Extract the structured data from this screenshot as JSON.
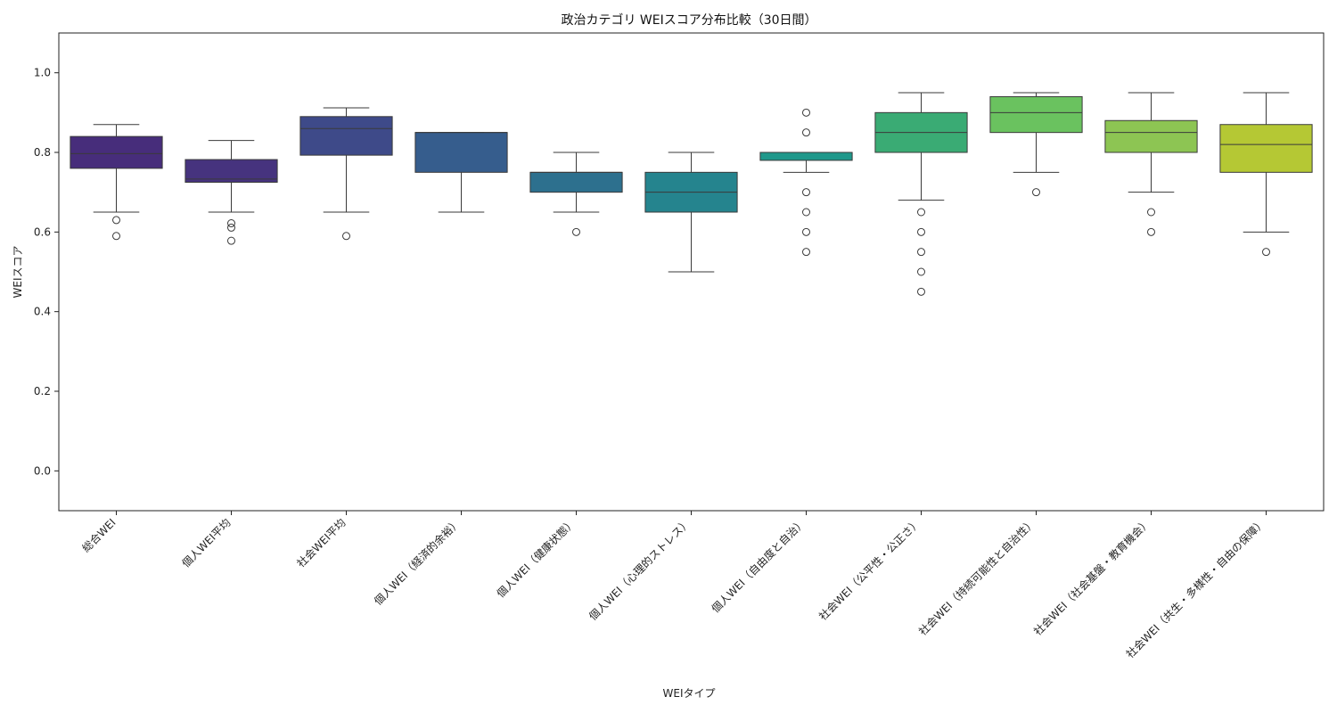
{
  "chart_data": {
    "type": "box",
    "title": "政治カテゴリ WEIスコア分布比較（30日間）",
    "xlabel": "WEIタイプ",
    "ylabel": "WEIスコア",
    "ylim": [
      -0.1,
      1.1
    ],
    "yticks": [
      0.0,
      0.2,
      0.4,
      0.6,
      0.8,
      1.0
    ],
    "ytick_labels": [
      "0.0",
      "0.2",
      "0.4",
      "0.6",
      "0.8",
      "1.0"
    ],
    "grid": false,
    "series": [
      {
        "name": "総合WEI",
        "whisker_low": 0.65,
        "q1": 0.76,
        "median": 0.797,
        "q3": 0.84,
        "whisker_high": 0.87,
        "outliers": [
          0.63,
          0.59
        ],
        "color": "#472d7b"
      },
      {
        "name": "個人WEI平均",
        "whisker_low": 0.65,
        "q1": 0.725,
        "median": 0.733,
        "q3": 0.782,
        "whisker_high": 0.83,
        "outliers": [
          0.622,
          0.611,
          0.578
        ],
        "color": "#46337e"
      },
      {
        "name": "社会WEI平均",
        "whisker_low": 0.65,
        "q1": 0.793,
        "median": 0.86,
        "q3": 0.89,
        "whisker_high": 0.912,
        "outliers": [
          0.59
        ],
        "color": "#3e4a89"
      },
      {
        "name": "個人WEI（経済的余裕）",
        "whisker_low": 0.65,
        "q1": 0.75,
        "median": 0.85,
        "q3": 0.85,
        "whisker_high": 0.85,
        "outliers": [],
        "color": "#365d8d"
      },
      {
        "name": "個人WEI（健康状態）",
        "whisker_low": 0.65,
        "q1": 0.7,
        "median": 0.75,
        "q3": 0.75,
        "whisker_high": 0.8,
        "outliers": [
          0.6
        ],
        "color": "#2d708e"
      },
      {
        "name": "個人WEI（心理的ストレス）",
        "whisker_low": 0.5,
        "q1": 0.65,
        "median": 0.7,
        "q3": 0.75,
        "whisker_high": 0.8,
        "outliers": [],
        "color": "#25848e"
      },
      {
        "name": "個人WEI（自由度と自治）",
        "whisker_low": 0.75,
        "q1": 0.78,
        "median": 0.8,
        "q3": 0.8,
        "whisker_high": 0.8,
        "outliers": [
          0.9,
          0.85,
          0.7,
          0.65,
          0.6,
          0.55
        ],
        "color": "#1f988b"
      },
      {
        "name": "社会WEI（公平性・公正さ）",
        "whisker_low": 0.68,
        "q1": 0.8,
        "median": 0.85,
        "q3": 0.9,
        "whisker_high": 0.95,
        "outliers": [
          0.65,
          0.6,
          0.55,
          0.5,
          0.45
        ],
        "color": "#3aab74"
      },
      {
        "name": "社会WEI（持続可能性と自治性）",
        "whisker_low": 0.75,
        "q1": 0.85,
        "median": 0.9,
        "q3": 0.94,
        "whisker_high": 0.95,
        "outliers": [
          0.7
        ],
        "color": "#6ac25f"
      },
      {
        "name": "社会WEI（社会基盤・教育機会）",
        "whisker_low": 0.7,
        "q1": 0.8,
        "median": 0.85,
        "q3": 0.88,
        "whisker_high": 0.95,
        "outliers": [
          0.65,
          0.6
        ],
        "color": "#8dc553"
      },
      {
        "name": "社会WEI（共生・多様性・自由の保障）",
        "whisker_low": 0.6,
        "q1": 0.75,
        "median": 0.82,
        "q3": 0.87,
        "whisker_high": 0.95,
        "outliers": [
          0.55
        ],
        "color": "#b5c834"
      }
    ]
  }
}
